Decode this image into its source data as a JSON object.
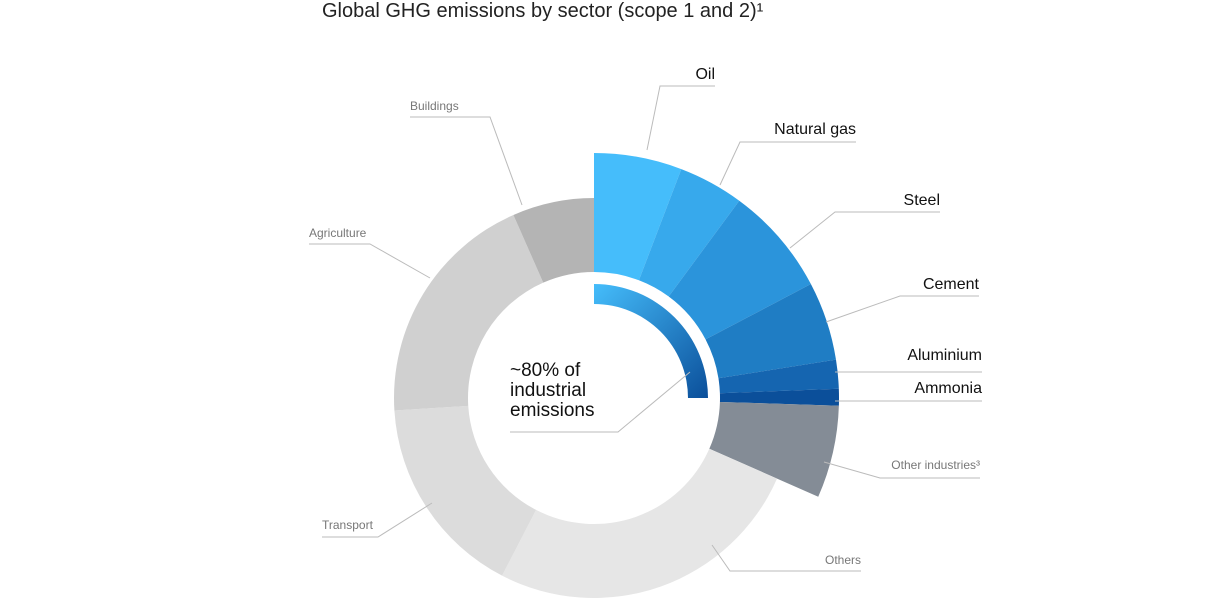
{
  "chart_data": {
    "type": "pie",
    "title": "Global GHG emissions by sector (scope 1 and 2)¹",
    "annotation": "~80% of industrial emissions",
    "categories": [
      "Oil",
      "Natural gas",
      "Steel",
      "Cement",
      "Aluminium",
      "Ammonia",
      "Other industries³",
      "Others",
      "Transport",
      "Agriculture",
      "Buildings"
    ],
    "values": [
      5.8,
      4.3,
      7.2,
      5.2,
      1.9,
      1.1,
      6.1,
      26,
      16.4,
      19.4,
      6.6
    ],
    "colors": [
      "#45bdfb",
      "#37a9ec",
      "#2b94db",
      "#1f7dc4",
      "#1565b0",
      "#0b4f9a",
      "#848c96",
      "#e6e6e6",
      "#dcdcdc",
      "#d0d0d0",
      "#b4b4b4"
    ],
    "exploded": [
      true,
      true,
      true,
      true,
      true,
      true,
      true,
      false,
      false,
      false,
      false
    ]
  }
}
